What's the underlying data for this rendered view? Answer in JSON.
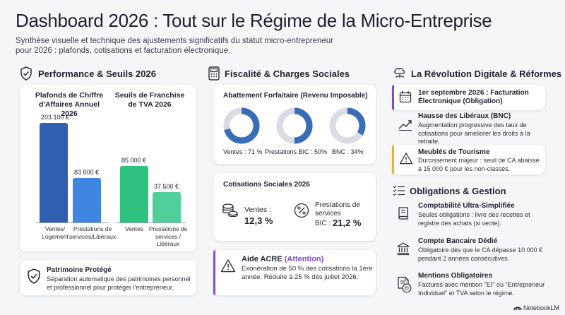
{
  "header": {
    "title": "Dashboard 2026 : Tout sur le Régime de la Micro-Entreprise",
    "subtitle": "Synthèse visuelle et technique des ajustements significatifs du statut micro-entrepreneur pour 2026 : plafonds, cotisations et facturation électronique."
  },
  "performance": {
    "heading": "Performance & Seuils 2026",
    "icon": "shield-check-icon",
    "chart_data": [
      {
        "type": "bar",
        "title": "Plafonds de Chiffre d'Affaires Annuel 2026",
        "categories": [
          "Ventes/ Logement",
          "Prestations de services/Libéraux"
        ],
        "values": [
          203100,
          83600
        ],
        "labels": [
          "203 100 €",
          "83 600 €"
        ],
        "colors": [
          "#2f5fae",
          "#3f86e0"
        ]
      },
      {
        "type": "bar",
        "title": "Seuils de Franchise de TVA 2026",
        "categories": [
          "Ventes",
          "Prestations de services / Libéraux"
        ],
        "values": [
          85000,
          37500
        ],
        "labels": [
          "85 000 €",
          "37 500 €"
        ],
        "colors": [
          "#2ec27e",
          "#4fcf9a"
        ]
      }
    ],
    "patrimoine": {
      "title": "Patrimoine Protégé",
      "desc": "Séparation automatique des patrimoines personnel et professionnel pour protéger l'entrepreneur.",
      "icon": "shield-check-icon"
    }
  },
  "fiscalite": {
    "heading": "Fiscalité & Charges Sociales",
    "icon": "calculator-icon",
    "abattement": {
      "title": "Abattement Forfaitaire (Revenu Imposable)",
      "chart_data": {
        "type": "pie",
        "categories": [
          "Ventes",
          "Prestations BIC",
          "BNC"
        ],
        "values": [
          71,
          50,
          34
        ],
        "labels": [
          "Ventes : 71 %",
          "Prestations BIC : 50%",
          "BNC : 34%"
        ],
        "colors": [
          "#3a6db8",
          "#d9dde3"
        ]
      }
    },
    "cotisations": {
      "title": "Cotisations Sociales 2026",
      "ventes_label": "Ventes :",
      "ventes_value": "12,3 %",
      "prest_label": "Prestations de services",
      "prest_bic": "BIC :",
      "prest_value": "21,2 %",
      "coins_icon": "coins-icon",
      "percent_icon": "percent-icon"
    },
    "acre": {
      "title": "Aide ACRE",
      "tag": "(Attention)",
      "desc": "Exonération de 50 % des cotisations la 1ère année. Réduite à 25 % dès juillet 2026.",
      "icon": "warning-icon",
      "accent": "#7b4fd0"
    }
  },
  "digital": {
    "heading": "La Révolution Digitale & Réformes",
    "icon": "cloud-network-icon",
    "items": [
      {
        "title": "1er septembre 2026 : Facturation Électronique (Obligation)",
        "desc": "",
        "icon": "calendar-icon",
        "accent": "#7b4fd0"
      },
      {
        "title": "Hausse des Libéraux (BNC)",
        "desc": "Augmentation progressive des taux de cotisations pour améliorer les droits à la retraite.",
        "icon": "trend-up-icon",
        "accent": ""
      },
      {
        "title": "Meublés de Tourisme",
        "desc": "Durcissement majeur : seuil de CA abaissé à 15 000 € pour les non-classés.",
        "icon": "warning-icon",
        "accent": "#e8b23a"
      }
    ]
  },
  "obligations": {
    "heading": "Obligations & Gestion",
    "icon": "checklist-icon",
    "items": [
      {
        "title": "Comptabilité Ultra-Simplifiée",
        "desc": "Seules obligations : livre des recettes et registre des achats (si vente).",
        "icon": "book-icon"
      },
      {
        "title": "Compte Bancaire Dédié",
        "desc": "Obligatoire dès que le CA dépasse 10 000 € pendant 2 années consécutives.",
        "icon": "bank-icon"
      },
      {
        "title": "Mentions Obligatoires",
        "desc": "Factures avec mention \"EI\" ou \"Entrepreneur Individuel\" et TVA selon le régime.",
        "icon": "document-ei-icon",
        "badge": "EI"
      }
    ]
  },
  "brand": {
    "name": "NotebookLM",
    "icon": "notebooklm-icon"
  }
}
